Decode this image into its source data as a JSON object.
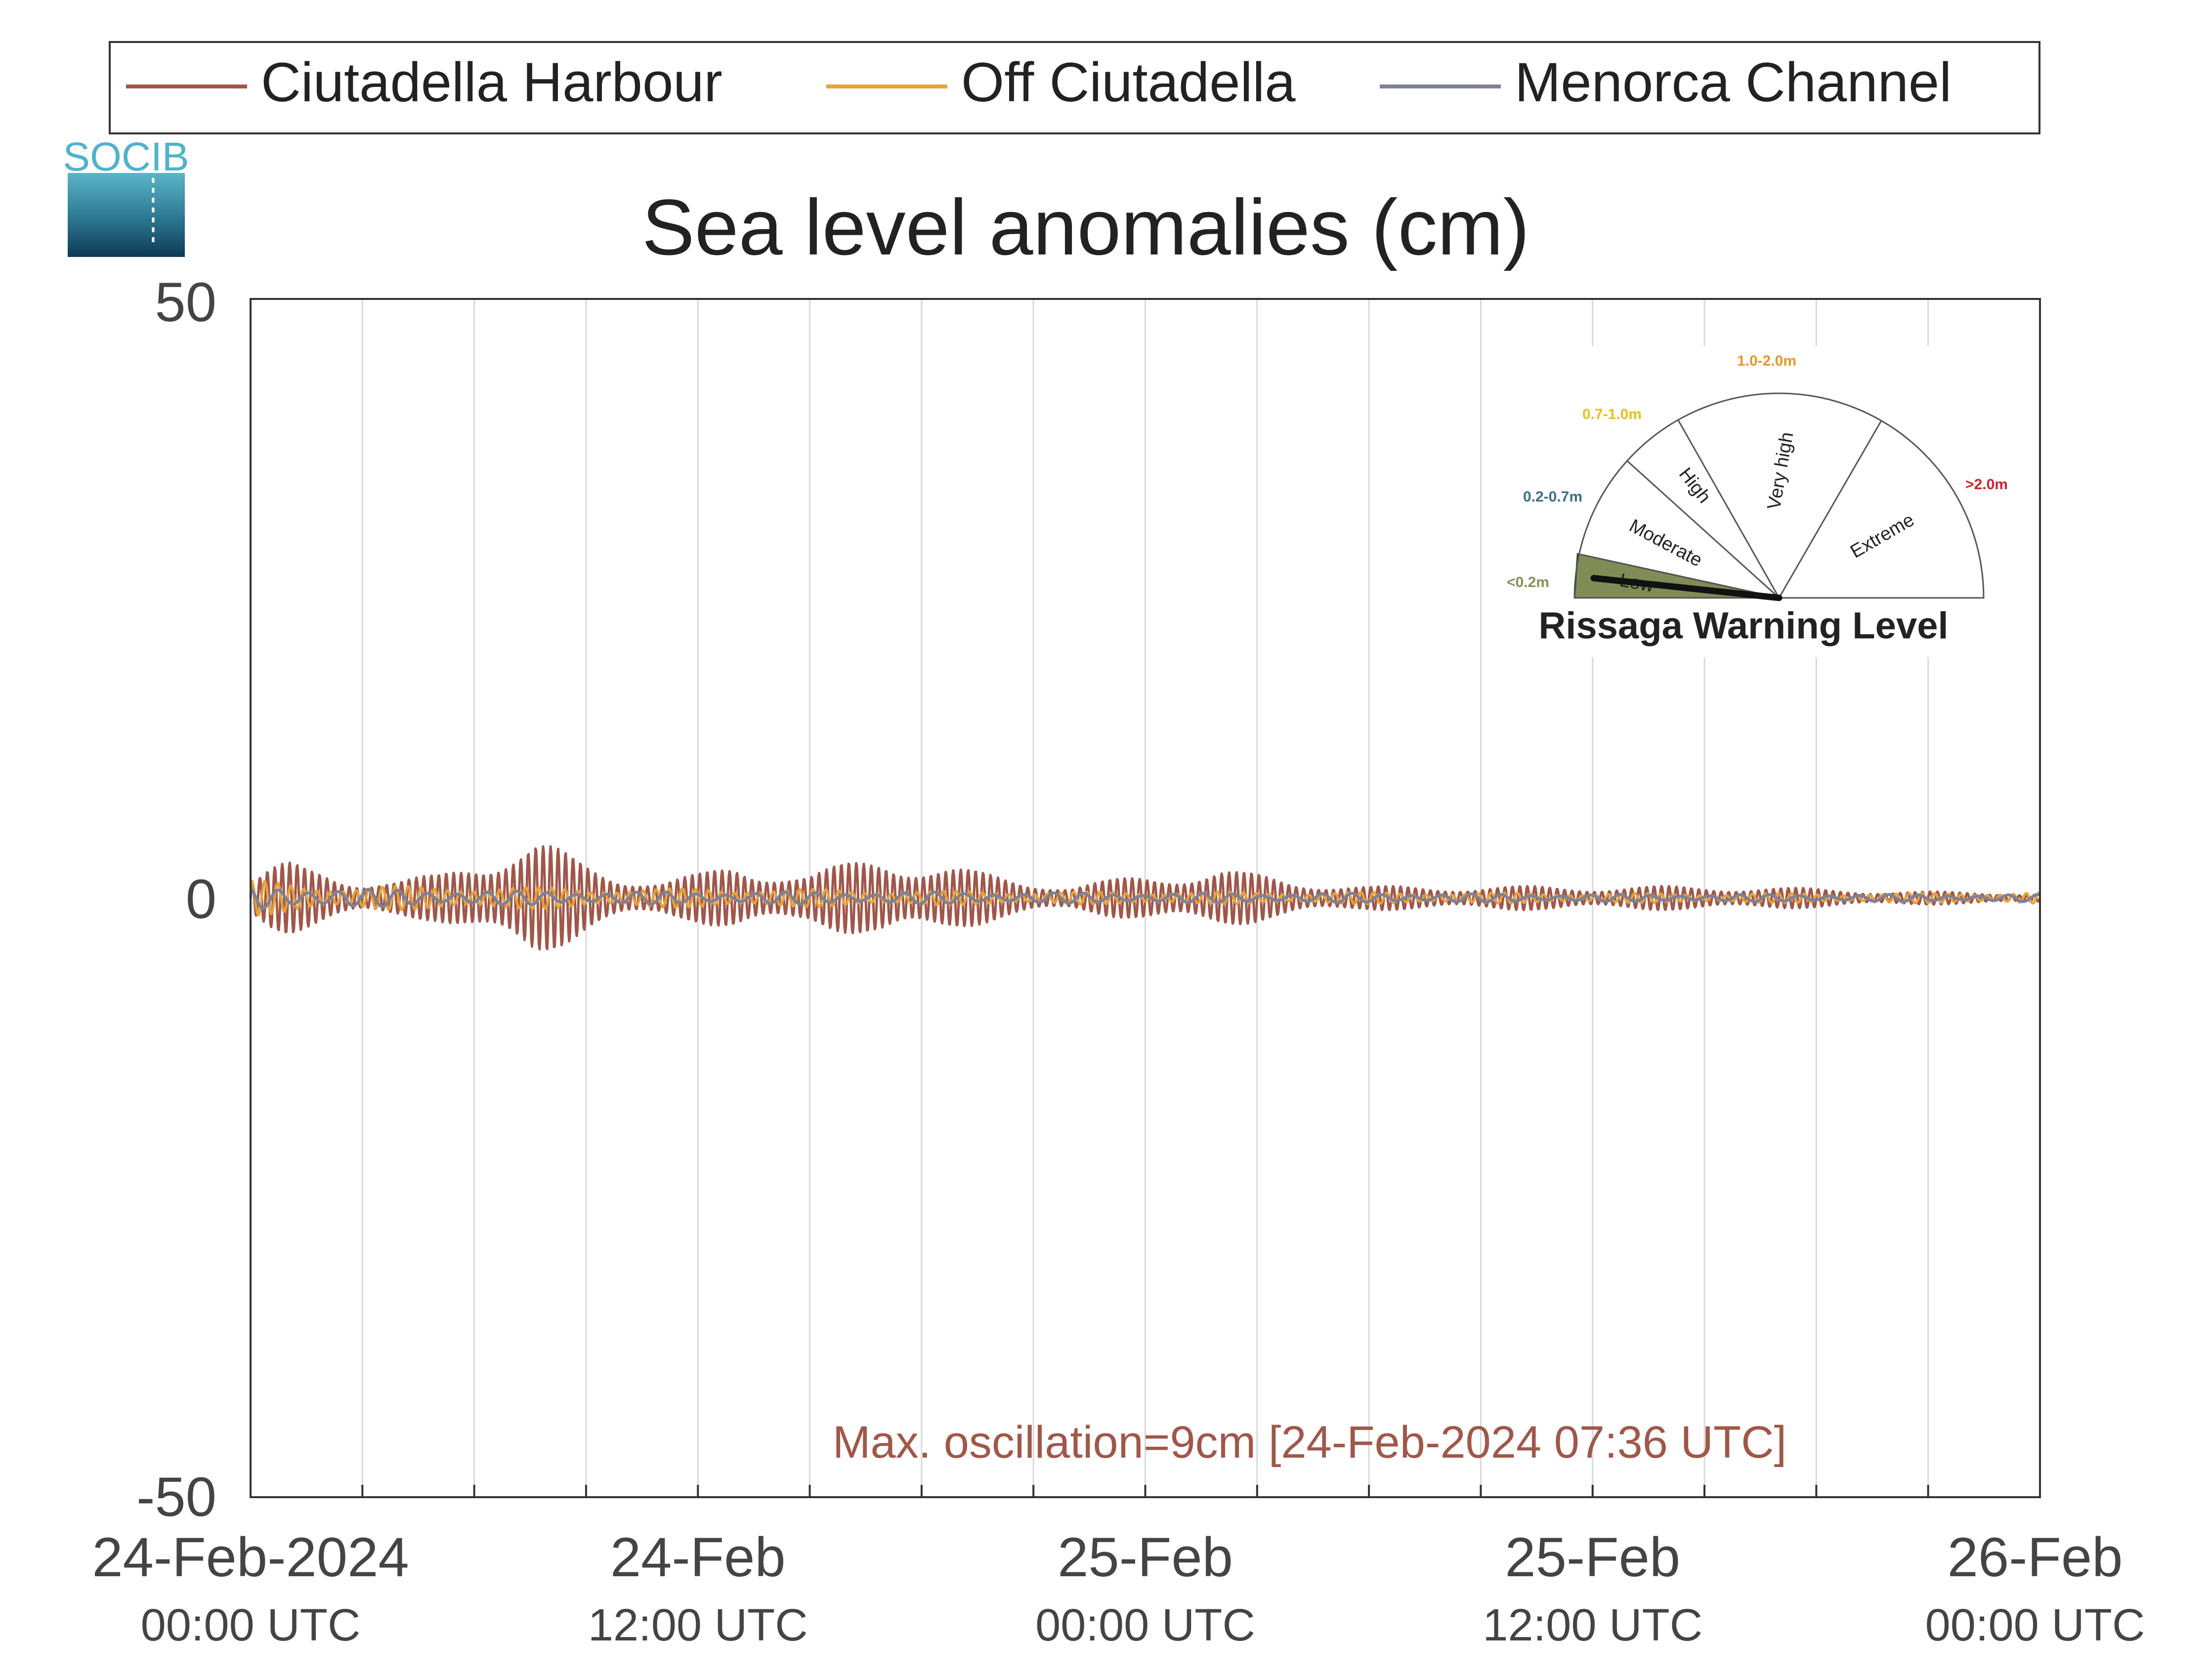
{
  "chart_data": {
    "type": "line",
    "title": "Sea level anomalies (cm)",
    "legend": {
      "placement": "top",
      "entries": [
        {
          "name": "Ciutadella Harbour",
          "color": "#a0574a"
        },
        {
          "name": "Off Ciutadella",
          "color": "#e6a23a"
        },
        {
          "name": "Menorca Channel",
          "color": "#7e8296"
        }
      ]
    },
    "ylim": [
      -50,
      50
    ],
    "yticks": [
      {
        "value": 50,
        "label": "50"
      },
      {
        "value": 0,
        "label": "0"
      },
      {
        "value": -50,
        "label": "-50"
      }
    ],
    "xlim_hours": [
      0,
      48
    ],
    "x_start": "24-Feb-2024 00:00 UTC",
    "x_gridlines_hours": [
      3,
      6,
      9,
      12,
      15,
      18,
      21,
      24,
      27,
      30,
      33,
      36,
      39,
      42,
      45
    ],
    "xticks": [
      {
        "hours": 0,
        "line1": "24-Feb-2024",
        "line2": "00:00 UTC"
      },
      {
        "hours": 12,
        "line1": "24-Feb",
        "line2": "12:00 UTC"
      },
      {
        "hours": 24,
        "line1": "25-Feb",
        "line2": "00:00 UTC"
      },
      {
        "hours": 36,
        "line1": "25-Feb",
        "line2": "12:00 UTC"
      },
      {
        "hours": 48,
        "line1": "26-Feb",
        "line2": "00:00 UTC"
      }
    ],
    "series": [
      {
        "name": "Ciutadella Harbour",
        "color": "#a0574a",
        "envelope_hours": [
          0,
          0.5,
          1,
          2,
          3,
          4,
          5,
          6,
          7,
          7.6,
          8,
          9,
          10,
          11,
          12,
          13,
          14,
          15,
          16,
          17,
          18,
          19,
          20,
          21,
          22,
          23,
          24,
          26,
          28,
          30,
          32,
          34,
          36,
          38,
          40,
          42,
          44,
          46,
          48
        ],
        "envelope_amplitude_cm": [
          1.5,
          2.5,
          3,
          2.5,
          1.5,
          1.5,
          2,
          3.5,
          4.5,
          5,
          4.5,
          3,
          2,
          1.5,
          2,
          3,
          2.5,
          2,
          3,
          4,
          3,
          2.5,
          2,
          1.5,
          1,
          1.5,
          2,
          2.5,
          1.5,
          1,
          1,
          1,
          1,
          1,
          1,
          0.8,
          0.6,
          0.5,
          0.4
        ]
      },
      {
        "name": "Off Ciutadella",
        "color": "#e6a23a",
        "envelope_hours": [
          0,
          2,
          6,
          10,
          14,
          18,
          24,
          30,
          36,
          40,
          44,
          48
        ],
        "envelope_amplitude_cm": [
          1.5,
          1.0,
          1.0,
          0.8,
          0.8,
          0.6,
          0.5,
          0.5,
          0.4,
          0.4,
          0.4,
          0.5
        ]
      },
      {
        "name": "Menorca Channel",
        "color": "#7e8296",
        "envelope_hours": [
          0,
          2,
          6,
          12,
          18,
          24,
          30,
          36,
          42,
          48
        ],
        "envelope_amplitude_cm": [
          1.0,
          0.8,
          0.6,
          0.5,
          0.5,
          0.4,
          0.4,
          0.3,
          0.3,
          0.3
        ]
      }
    ],
    "annotation": {
      "text": "Max. oscillation=9cm [24-Feb-2024 07:36 UTC]",
      "color": "#a0574a"
    },
    "grid": true,
    "logo": {
      "text": "SOCIB"
    },
    "warning_gauge": {
      "title": "Rissaga Warning Level",
      "active_level": "Low",
      "needle_value_m": 0.09,
      "levels": [
        {
          "name": "Low",
          "range": "<0.2m",
          "color": "#8b8f5a",
          "fill": "#7f8c56"
        },
        {
          "name": "Moderate",
          "range": "0.2-0.7m",
          "color": "#3e6e8c"
        },
        {
          "name": "High",
          "range": "0.7-1.0m",
          "color": "#e6c21a"
        },
        {
          "name": "Very high",
          "range": "1.0-2.0m",
          "color": "#e8962a"
        },
        {
          "name": "Extreme",
          "range": ">2.0m",
          "color": "#d4202a"
        }
      ]
    }
  }
}
